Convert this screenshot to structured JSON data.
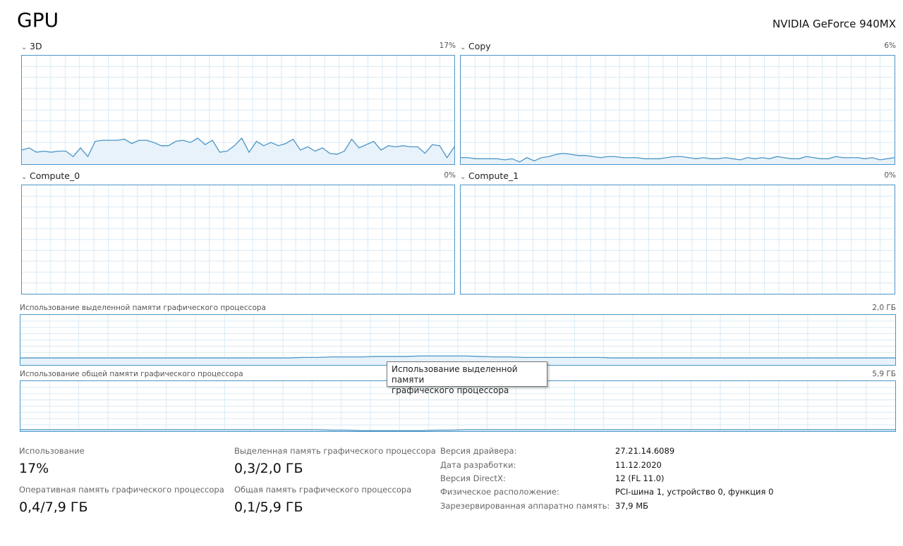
{
  "header": {
    "title": "GPU",
    "adapter": "NVIDIA GeForce 940MX"
  },
  "engines": [
    {
      "name": "3D",
      "percent": "17%",
      "samples": [
        13,
        15,
        11,
        12,
        11,
        12,
        12,
        7,
        15,
        7,
        21,
        22,
        22,
        22,
        23,
        19,
        22,
        22,
        20,
        17,
        17,
        21,
        22,
        20,
        24,
        18,
        22,
        11,
        12,
        17,
        24,
        11,
        21,
        17,
        20,
        17,
        19,
        23,
        13,
        16,
        12,
        15,
        10,
        9,
        12,
        23,
        15,
        18,
        21,
        13,
        17,
        16,
        17,
        16,
        16,
        10,
        18,
        17,
        6,
        16
      ],
      "fill": true
    },
    {
      "name": "Copy",
      "percent": "6%",
      "samples": [
        6,
        6,
        5,
        5,
        5,
        5,
        4,
        5,
        2,
        6,
        3,
        6,
        7,
        9,
        10,
        9,
        8,
        8,
        7,
        6,
        7,
        7,
        6,
        6,
        6,
        5,
        5,
        5,
        6,
        7,
        7,
        6,
        5,
        6,
        5,
        5,
        6,
        5,
        4,
        6,
        5,
        6,
        5,
        7,
        6,
        5,
        5,
        7,
        6,
        5,
        5,
        7,
        6,
        6,
        6,
        5,
        6,
        4,
        5,
        6
      ],
      "fill": false
    },
    {
      "name": "Compute_0",
      "percent": "0%",
      "samples": [],
      "fill": false
    },
    {
      "name": "Compute_1",
      "percent": "0%",
      "samples": [],
      "fill": false
    }
  ],
  "memory": {
    "dedicated": {
      "label": "Использование выделенной памяти графического процессора",
      "max": "2,0 ГБ",
      "samples": [
        14,
        14,
        14,
        14,
        14,
        14,
        14,
        14,
        14,
        14,
        14,
        14,
        14,
        14,
        14,
        14,
        14,
        14,
        14,
        15,
        15,
        16,
        16,
        16,
        17,
        17,
        17,
        18,
        18,
        18,
        18,
        17,
        16,
        16,
        15,
        15,
        15,
        15,
        15,
        15,
        14,
        14,
        14,
        14,
        14,
        14,
        14,
        14,
        14,
        14,
        14,
        14,
        14,
        14,
        14,
        14,
        14,
        14,
        14,
        14
      ]
    },
    "shared": {
      "label": "Использование общей памяти графического процессора",
      "max": "5,9 ГБ",
      "samples": [
        3,
        3,
        3,
        3,
        3,
        3,
        3,
        3,
        3,
        3,
        3,
        3,
        3,
        3,
        3,
        3,
        3,
        3,
        3,
        3,
        3,
        2,
        2,
        1,
        1,
        1,
        1,
        1,
        2,
        2,
        3,
        3,
        3,
        3,
        3,
        3,
        3,
        3,
        3,
        3,
        3,
        3,
        3,
        3,
        3,
        3,
        3,
        3,
        3,
        3,
        3,
        3,
        3,
        3,
        3,
        3,
        3,
        3,
        3,
        3
      ]
    }
  },
  "tooltip": {
    "line1": "Использование выделенной памяти",
    "line2": "графического процессора"
  },
  "stats": {
    "usage": {
      "label": "Использование",
      "value": "17%"
    },
    "dedicated": {
      "label": "Выделенная память графического процессора",
      "value": "0,3/2,0 ГБ"
    },
    "gpu_memory": {
      "label": "Оперативная память графического процессора",
      "value": "0,4/7,9 ГБ"
    },
    "shared": {
      "label": "Общая память графического процессора",
      "value": "0,1/5,9 ГБ"
    }
  },
  "properties": [
    {
      "label": "Версия драйвера:",
      "value": "27.21.14.6089"
    },
    {
      "label": "Дата разработки:",
      "value": "11.12.2020"
    },
    {
      "label": "Версия DirectX:",
      "value": "12 (FL 11.0)"
    },
    {
      "label": "Физическое расположение:",
      "value": "PCI-шина 1, устройство 0, функция 0"
    },
    {
      "label": "Зарезервированная аппаратно память:",
      "value": "37,9 МБ"
    }
  ],
  "colors": {
    "line": "#4b96c8",
    "grid": "#d9eaf5",
    "fill": "#e8f2fa"
  }
}
